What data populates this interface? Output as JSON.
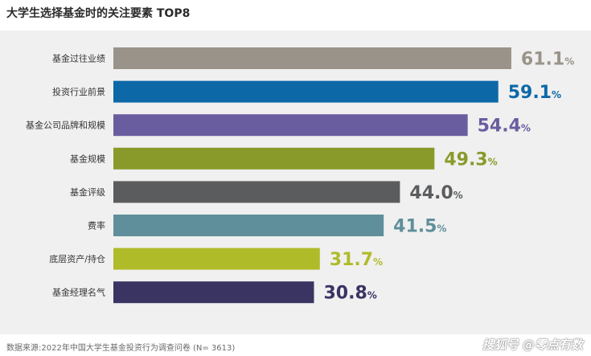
{
  "chart_data": {
    "type": "bar",
    "orientation": "horizontal",
    "title": "大学生选择基金时的关注要素 TOP8",
    "xlabel": "",
    "ylabel": "",
    "unit": "%",
    "xlim": [
      0,
      65
    ],
    "grid": false,
    "legend": "none",
    "categories": [
      "基金过往业绩",
      "投资行业前景",
      "基金公司品牌和规模",
      "基金规模",
      "基金评级",
      "费率",
      "底层资产/持仓",
      "基金经理名气"
    ],
    "values": [
      61.1,
      59.1,
      54.4,
      49.3,
      44.0,
      41.5,
      31.7,
      30.8
    ],
    "value_labels": [
      "61.1",
      "59.1",
      "54.4",
      "49.3",
      "44.0",
      "41.5",
      "31.7",
      "30.8"
    ],
    "colors": [
      "#9a938a",
      "#0d68a8",
      "#6a5d9f",
      "#8a9a2a",
      "#5a5c5e",
      "#5e8f9a",
      "#b0bb2a",
      "#3a3463"
    ],
    "source": "数据来源:2022年中国大学生基金投资行为调查问卷 (N= 3613)"
  },
  "watermark": "搜狐号 @零点有数"
}
